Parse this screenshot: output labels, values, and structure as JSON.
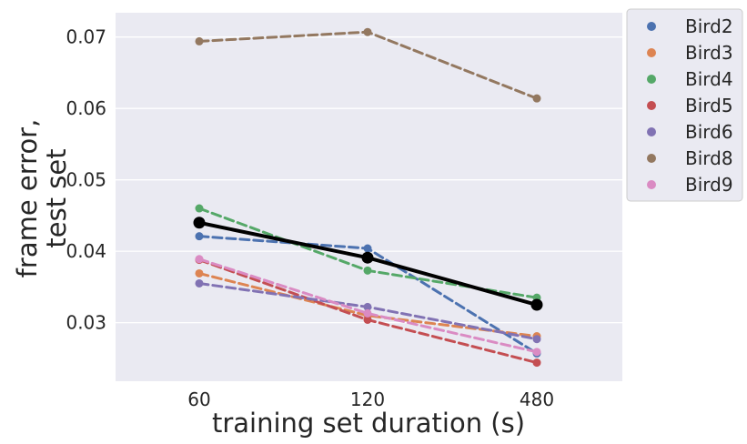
{
  "chart_data": {
    "type": "line",
    "title": "",
    "xlabel": "training set duration (s)",
    "ylabel_lines": [
      "frame error,",
      "test set"
    ],
    "categories": [
      "60",
      "120",
      "480"
    ],
    "yticks": [
      "0.03",
      "0.04",
      "0.05",
      "0.06",
      "0.07"
    ],
    "ylim": [
      0.0218,
      0.0734
    ],
    "grid": true,
    "legend_position": "outside-right-top",
    "series": [
      {
        "name": "Bird2",
        "color": "#4c72b0",
        "values": [
          0.0421,
          0.0404,
          0.0257
        ]
      },
      {
        "name": "Bird3",
        "color": "#dd8452",
        "values": [
          0.0369,
          0.031,
          0.0281
        ]
      },
      {
        "name": "Bird4",
        "color": "#55a868",
        "values": [
          0.046,
          0.0373,
          0.0335
        ]
      },
      {
        "name": "Bird5",
        "color": "#c44e52",
        "values": [
          0.0388,
          0.0304,
          0.0244
        ]
      },
      {
        "name": "Bird6",
        "color": "#8172b3",
        "values": [
          0.0355,
          0.0322,
          0.0277
        ]
      },
      {
        "name": "Bird8",
        "color": "#937860",
        "values": [
          0.0694,
          0.0707,
          0.0614
        ]
      },
      {
        "name": "Bird9",
        "color": "#da8bc3",
        "values": [
          0.0389,
          0.0313,
          0.0259
        ]
      }
    ],
    "mean_series": {
      "color": "#000000",
      "values": [
        0.044,
        0.0391,
        0.0325
      ]
    }
  }
}
